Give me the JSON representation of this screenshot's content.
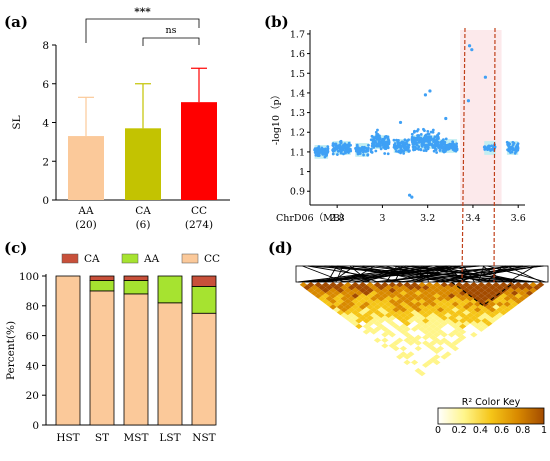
{
  "panel_labels": [
    "(a)",
    "(b)",
    "(c)",
    "(d)"
  ],
  "chart_data": [
    {
      "panel": "(a)",
      "type": "bar",
      "ylabel": "SL",
      "ylim": [
        0,
        8
      ],
      "yticks": [
        0,
        2,
        4,
        6,
        8
      ],
      "categories": [
        "AA",
        "CA",
        "CC"
      ],
      "category_counts": [
        "(20)",
        "(6)",
        "(274)"
      ],
      "values": [
        3.3,
        3.7,
        5.05
      ],
      "errors": [
        2.0,
        2.3,
        1.75
      ],
      "colors": [
        "#fbc99a",
        "#c3c301",
        "#ff0000"
      ],
      "significance": [
        {
          "from": "AA",
          "to": "CC",
          "label": "***"
        },
        {
          "from": "CA",
          "to": "CC",
          "label": "ns"
        }
      ]
    },
    {
      "panel": "(b)",
      "type": "scatter",
      "ylabel": "-log10（p）",
      "xlabel": "ChrD06（MB）",
      "xlim": [
        2.68,
        3.63
      ],
      "ylim": [
        0.83,
        1.72
      ],
      "xticks": [
        2.8,
        3.0,
        3.2,
        3.4,
        3.6
      ],
      "yticks": [
        0.9,
        1.0,
        1.1,
        1.2,
        1.3,
        1.4,
        1.5,
        1.6,
        1.7
      ],
      "point_color": "#3fa0f5",
      "band_color": "#c2eef2",
      "clusters": [
        {
          "x_range": [
            2.7,
            2.76
          ],
          "y_mean": 1.1,
          "y_spread": 0.04,
          "n": 70
        },
        {
          "x_range": [
            2.78,
            2.86
          ],
          "y_mean": 1.12,
          "y_spread": 0.05,
          "n": 90
        },
        {
          "x_range": [
            2.88,
            2.94
          ],
          "y_mean": 1.11,
          "y_spread": 0.04,
          "n": 45
        },
        {
          "x_range": [
            2.95,
            3.03
          ],
          "y_mean": 1.15,
          "y_spread": 0.08,
          "n": 110
        },
        {
          "x_range": [
            3.05,
            3.12
          ],
          "y_mean": 1.13,
          "y_spread": 0.06,
          "n": 80
        },
        {
          "x_range": [
            3.13,
            3.25
          ],
          "y_mean": 1.15,
          "y_spread": 0.09,
          "n": 170
        },
        {
          "x_range": [
            3.25,
            3.33
          ],
          "y_mean": 1.13,
          "y_spread": 0.05,
          "n": 90
        },
        {
          "x_range": [
            3.45,
            3.5
          ],
          "y_mean": 1.12,
          "y_spread": 0.03,
          "n": 25
        },
        {
          "x_range": [
            3.55,
            3.6
          ],
          "y_mean": 1.12,
          "y_spread": 0.04,
          "n": 45
        }
      ],
      "outliers": [
        {
          "x": 3.385,
          "y": 1.64
        },
        {
          "x": 3.395,
          "y": 1.62
        },
        {
          "x": 3.38,
          "y": 1.36
        },
        {
          "x": 3.455,
          "y": 1.48
        },
        {
          "x": 3.08,
          "y": 1.25
        },
        {
          "x": 3.12,
          "y": 0.88
        },
        {
          "x": 3.13,
          "y": 0.87
        },
        {
          "x": 3.21,
          "y": 1.41
        },
        {
          "x": 3.19,
          "y": 1.39
        },
        {
          "x": 3.28,
          "y": 1.27
        }
      ],
      "highlight_region": {
        "x_from": 3.37,
        "x_to": 3.5
      }
    },
    {
      "panel": "(c)",
      "type": "bar",
      "stacked": true,
      "ylabel": "Percent(%)",
      "ylim": [
        0,
        100
      ],
      "yticks": [
        0,
        20,
        40,
        60,
        80,
        100
      ],
      "categories": [
        "HST",
        "ST",
        "MST",
        "LST",
        "NST"
      ],
      "legend": [
        "CA",
        "AA",
        "CC"
      ],
      "legend_position": "top",
      "series": [
        {
          "name": "CC",
          "color": "#fbc99a",
          "values": [
            100,
            90,
            88,
            82,
            75
          ]
        },
        {
          "name": "AA",
          "color": "#a6e330",
          "values": [
            0,
            7,
            9,
            18,
            18
          ]
        },
        {
          "name": "CA",
          "color": "#c8503a",
          "values": [
            0,
            3,
            3,
            0,
            7
          ]
        }
      ]
    },
    {
      "panel": "(d)",
      "type": "heatmap",
      "description_shape": "triangular LD heatmap",
      "colorbar_title": "R² Color Key",
      "colorbar_ticks": [
        "0",
        "0.2",
        "0.4",
        "0.6",
        "0.8",
        "1"
      ],
      "colorbar_range": [
        0,
        1
      ],
      "colors": [
        "#ffffff",
        "#fff58a",
        "#f5c518",
        "#d98a00",
        "#a34b00"
      ],
      "highlight_block": "dashed triangle near right side"
    }
  ]
}
